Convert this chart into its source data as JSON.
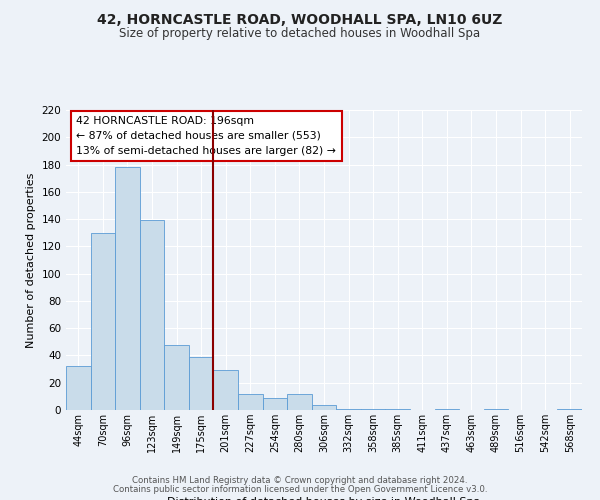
{
  "title": "42, HORNCASTLE ROAD, WOODHALL SPA, LN10 6UZ",
  "subtitle": "Size of property relative to detached houses in Woodhall Spa",
  "xlabel": "Distribution of detached houses by size in Woodhall Spa",
  "ylabel": "Number of detached properties",
  "footnote1": "Contains HM Land Registry data © Crown copyright and database right 2024.",
  "footnote2": "Contains public sector information licensed under the Open Government Licence v3.0.",
  "bar_labels": [
    "44sqm",
    "70sqm",
    "96sqm",
    "123sqm",
    "149sqm",
    "175sqm",
    "201sqm",
    "227sqm",
    "254sqm",
    "280sqm",
    "306sqm",
    "332sqm",
    "358sqm",
    "385sqm",
    "411sqm",
    "437sqm",
    "463sqm",
    "489sqm",
    "516sqm",
    "542sqm",
    "568sqm"
  ],
  "bar_heights": [
    32,
    130,
    178,
    139,
    48,
    39,
    29,
    12,
    9,
    12,
    4,
    1,
    1,
    1,
    0,
    1,
    0,
    1,
    0,
    0,
    1
  ],
  "bar_color": "#c9dcea",
  "bar_edge_color": "#5b9bd5",
  "bar_width": 1.0,
  "vline_x": 6.0,
  "vline_color": "#8b0000",
  "ylim": [
    0,
    220
  ],
  "yticks": [
    0,
    20,
    40,
    60,
    80,
    100,
    120,
    140,
    160,
    180,
    200,
    220
  ],
  "annotation_title": "42 HORNCASTLE ROAD: 196sqm",
  "annotation_line1": "← 87% of detached houses are smaller (553)",
  "annotation_line2": "13% of semi-detached houses are larger (82) →",
  "annotation_box_color": "#ffffff",
  "annotation_box_edge": "#cc0000",
  "bg_color": "#edf2f8",
  "grid_color": "#ffffff",
  "title_fontsize": 10,
  "subtitle_fontsize": 8.5
}
